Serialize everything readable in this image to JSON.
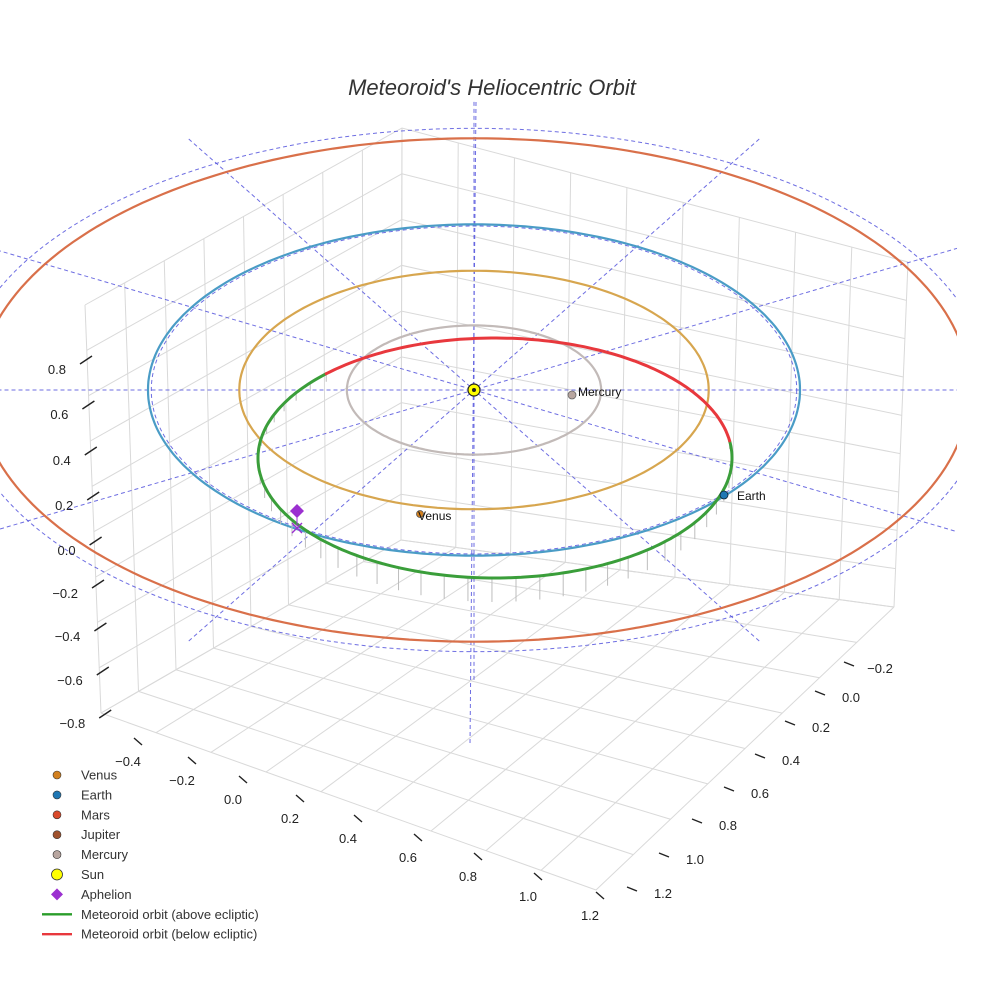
{
  "chart_data": {
    "type": "line-3d",
    "title": "Meteoroid's Heliocentric Orbit",
    "axes": {
      "x": {
        "ticks": [
          "−0.4",
          "−0.2",
          "0.0",
          "0.2",
          "0.4",
          "0.6",
          "0.8",
          "1.0",
          "1.2"
        ]
      },
      "y": {
        "ticks": [
          "−0.2",
          "0.0",
          "0.2",
          "0.4",
          "0.6",
          "0.8",
          "1.0",
          "1.2"
        ]
      },
      "z": {
        "ticks": [
          "0.8",
          "0.6",
          "0.4",
          "0.2",
          "0.0",
          "−0.2",
          "−0.4",
          "−0.6",
          "−0.8"
        ]
      }
    },
    "bodies": [
      {
        "name": "Mercury",
        "orbit_radius_au": 0.39,
        "color": "#b8a6a0",
        "orbit_color": "#c2bab8"
      },
      {
        "name": "Venus",
        "orbit_radius_au": 0.72,
        "color": "#d2801f",
        "orbit_color": "#d7a64f"
      },
      {
        "name": "Earth",
        "orbit_radius_au": 1.0,
        "color": "#1f77b4",
        "orbit_color": "#4a9cc6"
      },
      {
        "name": "Mars",
        "orbit_radius_au": 1.52,
        "color": "#d94a2b",
        "orbit_color": "#d9704a"
      }
    ],
    "orbit_labels": [
      "Mercury",
      "Venus",
      "Earth"
    ],
    "legend": {
      "position": "bottom-left",
      "entries": [
        {
          "label": "Venus",
          "marker": "circle",
          "color": "#d2801f"
        },
        {
          "label": "Earth",
          "marker": "circle",
          "color": "#1f77b4"
        },
        {
          "label": "Mars",
          "marker": "circle",
          "color": "#d94a2b"
        },
        {
          "label": "Jupiter",
          "marker": "circle",
          "color": "#a0522d"
        },
        {
          "label": "Mercury",
          "marker": "circle",
          "color": "#b8a6a0"
        },
        {
          "label": "Sun",
          "marker": "circle-large",
          "color": "#ffff00"
        },
        {
          "label": "Aphelion",
          "marker": "diamond",
          "color": "#9b30d0"
        },
        {
          "label": "Meteoroid orbit (above ecliptic)",
          "marker": "line",
          "color": "#2a9d2a"
        },
        {
          "label": "Meteoroid orbit (below ecliptic)",
          "marker": "line",
          "color": "#e8383d"
        }
      ]
    },
    "meteoroid_orbit": {
      "above_color": "#3a9e3a",
      "below_color": "#e8383d",
      "aphelion_marker": "diamond"
    },
    "guide_color": "#5555dd",
    "grid": true
  }
}
